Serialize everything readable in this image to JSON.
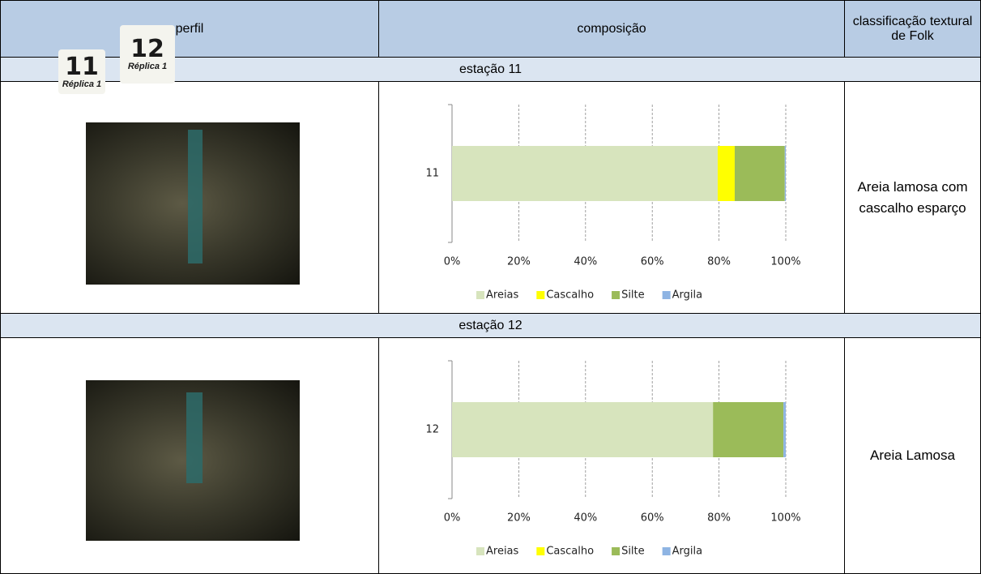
{
  "header": {
    "perfil": "perfil",
    "composicao": "composição",
    "classificacao": "classificação textural de Folk"
  },
  "stations": [
    {
      "title": "estação 11",
      "photo": {
        "number": "11",
        "label": "Réplica 1"
      },
      "chart_data": {
        "type": "bar",
        "orientation": "horizontal",
        "stacked": true,
        "categories": [
          "11"
        ],
        "series": [
          {
            "name": "Areias",
            "color": "#d7e4bd",
            "values": [
              79.6
            ]
          },
          {
            "name": "Cascalho",
            "color": "#ffff00",
            "values": [
              5.1
            ]
          },
          {
            "name": "Silte",
            "color": "#9bbb59",
            "values": [
              15.0
            ]
          },
          {
            "name": "Argila",
            "color": "#8eb4e3",
            "values": [
              0.3
            ]
          }
        ],
        "xlim": [
          0,
          100
        ],
        "xticks": [
          {
            "value": 0,
            "label": "0%"
          },
          {
            "value": 20,
            "label": "20%"
          },
          {
            "value": 40,
            "label": "40%"
          },
          {
            "value": 60,
            "label": "60%"
          },
          {
            "value": 80,
            "label": "80%"
          },
          {
            "value": 100,
            "label": "100%"
          }
        ],
        "grid": true,
        "legend": "bottom"
      },
      "classification": "Areia lamosa com cascalho esparço"
    },
    {
      "title": "estação 12",
      "photo": {
        "number": "12",
        "label": "Réplica 1"
      },
      "chart_data": {
        "type": "bar",
        "orientation": "horizontal",
        "stacked": true,
        "categories": [
          "12"
        ],
        "series": [
          {
            "name": "Areias",
            "color": "#d7e4bd",
            "values": [
              78.2
            ]
          },
          {
            "name": "Cascalho",
            "color": "#ffff00",
            "values": [
              0
            ]
          },
          {
            "name": "Silte",
            "color": "#9bbb59",
            "values": [
              21.1
            ]
          },
          {
            "name": "Argila",
            "color": "#8eb4e3",
            "values": [
              0.7
            ]
          }
        ],
        "xlim": [
          0,
          100
        ],
        "xticks": [
          {
            "value": 0,
            "label": "0%"
          },
          {
            "value": 20,
            "label": "20%"
          },
          {
            "value": 40,
            "label": "40%"
          },
          {
            "value": 60,
            "label": "60%"
          },
          {
            "value": 80,
            "label": "80%"
          },
          {
            "value": 100,
            "label": "100%"
          }
        ],
        "grid": true,
        "legend": "bottom"
      },
      "classification": "Areia Lamosa"
    }
  ]
}
